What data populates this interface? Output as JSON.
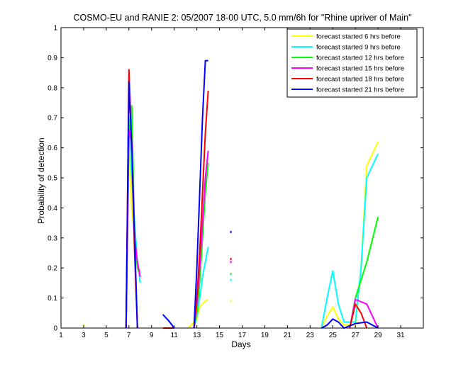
{
  "chart_data": {
    "type": "line",
    "title": "COSMO-EU and RANIE 2: 05/2007 18-00 UTC, 5.0 mm/6h for \"Rhine upriver of Main\"",
    "xlabel": "Days",
    "ylabel": "Probability of detection",
    "xlim": [
      1,
      33
    ],
    "ylim": [
      0,
      1
    ],
    "xticks": [
      1,
      3,
      5,
      7,
      9,
      11,
      13,
      15,
      17,
      19,
      21,
      23,
      25,
      27,
      29,
      31
    ],
    "yticks": [
      0,
      0.1,
      0.2,
      0.3,
      0.4,
      0.5,
      0.6,
      0.7,
      0.8,
      0.9,
      1
    ],
    "ytick_labels": [
      "0",
      "0.1",
      "0.2",
      "0.3",
      "0.4",
      "0.5",
      "0.6",
      "0.7",
      "0.8",
      "0.9",
      "1"
    ],
    "legend_position": "top-right",
    "grid": false,
    "series": [
      {
        "name": "forecast started 6 hrs before",
        "color": "#ffff00",
        "segments": [
          [
            [
              3,
              0.01
            ]
          ],
          [
            [
              6.75,
              0.0
            ],
            [
              7.0,
              0.58
            ],
            [
              7.25,
              0.4
            ],
            [
              7.5,
              0.3
            ],
            [
              7.75,
              0.2
            ],
            [
              8.0,
              0.17
            ]
          ],
          [
            [
              12.25,
              0.0
            ],
            [
              12.5,
              0.01
            ],
            [
              13.0,
              0.03
            ],
            [
              13.25,
              0.07
            ],
            [
              13.5,
              0.08
            ],
            [
              13.75,
              0.09
            ],
            [
              14.0,
              0.095
            ]
          ],
          [
            [
              16,
              0.09
            ]
          ],
          [
            [
              24.0,
              0.0
            ],
            [
              24.5,
              0.04
            ],
            [
              25.0,
              0.07
            ],
            [
              25.5,
              0.03
            ],
            [
              26.0,
              0.01
            ],
            [
              27.0,
              0.01
            ],
            [
              27.5,
              0.2
            ],
            [
              28.0,
              0.54
            ],
            [
              29.0,
              0.62
            ]
          ]
        ]
      },
      {
        "name": "forecast started 9 hrs before",
        "color": "#00ffff",
        "segments": [
          [
            [
              6.75,
              0.0
            ],
            [
              7.0,
              0.7
            ],
            [
              7.25,
              0.5
            ],
            [
              7.5,
              0.35
            ],
            [
              7.75,
              0.22
            ],
            [
              8.0,
              0.15
            ]
          ],
          [
            [
              12.75,
              0.0
            ],
            [
              13.0,
              0.04
            ],
            [
              13.25,
              0.1
            ],
            [
              13.5,
              0.17
            ],
            [
              13.75,
              0.22
            ],
            [
              14.0,
              0.27
            ]
          ],
          [
            [
              16,
              0.16
            ]
          ],
          [
            [
              24.0,
              0.0
            ],
            [
              24.5,
              0.1
            ],
            [
              25.0,
              0.19
            ],
            [
              25.5,
              0.08
            ],
            [
              26.0,
              0.02
            ],
            [
              27.0,
              0.02
            ],
            [
              27.5,
              0.2
            ],
            [
              28.0,
              0.5
            ],
            [
              29.0,
              0.58
            ]
          ]
        ]
      },
      {
        "name": "forecast started 12 hrs before",
        "color": "#00ff00",
        "segments": [
          [
            [
              6.75,
              0.0
            ],
            [
              7.0,
              0.64
            ],
            [
              7.25,
              0.74
            ],
            [
              7.5,
              0.3
            ],
            [
              7.75,
              0.2
            ],
            [
              8.0,
              0.18
            ]
          ],
          [
            [
              12.75,
              0.0
            ],
            [
              13.0,
              0.05
            ],
            [
              13.25,
              0.15
            ],
            [
              13.5,
              0.3
            ],
            [
              13.75,
              0.45
            ],
            [
              14.0,
              0.55
            ]
          ],
          [
            [
              16,
              0.18
            ]
          ],
          [
            [
              26.5,
              0.0
            ],
            [
              27.0,
              0.1
            ],
            [
              28.0,
              0.22
            ],
            [
              29.0,
              0.37
            ]
          ]
        ]
      },
      {
        "name": "forecast started 15 hrs before",
        "color": "#ff00ff",
        "segments": [
          [
            [
              6.75,
              0.0
            ],
            [
              7.0,
              0.66
            ],
            [
              7.25,
              0.62
            ],
            [
              7.5,
              0.3
            ],
            [
              7.75,
              0.22
            ],
            [
              8.0,
              0.17
            ]
          ],
          [
            [
              12.75,
              0.0
            ],
            [
              13.0,
              0.08
            ],
            [
              13.25,
              0.2
            ],
            [
              13.5,
              0.35
            ],
            [
              13.75,
              0.5
            ],
            [
              14.0,
              0.59
            ]
          ],
          [
            [
              16,
              0.22
            ]
          ],
          [
            [
              26.5,
              0.0
            ],
            [
              27.0,
              0.095
            ],
            [
              28.0,
              0.08
            ],
            [
              29.0,
              0.0
            ]
          ]
        ]
      },
      {
        "name": "forecast started 18 hrs before",
        "color": "#ff0000",
        "segments": [
          [
            [
              6.75,
              0.0
            ],
            [
              7.0,
              0.86
            ],
            [
              7.25,
              0.6
            ],
            [
              7.5,
              0.25
            ],
            [
              7.75,
              0.0
            ]
          ],
          [
            [
              10.0,
              0.0
            ],
            [
              11.0,
              0.0
            ]
          ],
          [
            [
              12.75,
              0.0
            ],
            [
              13.0,
              0.1
            ],
            [
              13.25,
              0.25
            ],
            [
              13.5,
              0.45
            ],
            [
              13.75,
              0.65
            ],
            [
              14.0,
              0.79
            ]
          ],
          [
            [
              16,
              0.23
            ]
          ],
          [
            [
              26.5,
              0.0
            ],
            [
              27.0,
              0.08
            ],
            [
              27.5,
              0.05
            ],
            [
              28.0,
              0.0
            ]
          ]
        ]
      },
      {
        "name": "forecast started 21 hrs before",
        "color": "#0000ff",
        "segments": [
          [
            [
              6.75,
              0.0
            ],
            [
              7.0,
              0.82
            ],
            [
              7.25,
              0.6
            ],
            [
              7.5,
              0.3
            ],
            [
              7.75,
              0.0
            ]
          ],
          [
            [
              10.0,
              0.045
            ],
            [
              10.5,
              0.025
            ],
            [
              11.0,
              0.0
            ]
          ],
          [
            [
              12.75,
              0.0
            ],
            [
              13.0,
              0.2
            ],
            [
              13.25,
              0.45
            ],
            [
              13.5,
              0.7
            ],
            [
              13.75,
              0.89
            ],
            [
              14.0,
              0.89
            ]
          ],
          [
            [
              16,
              0.32
            ]
          ],
          [
            [
              24.0,
              0.0
            ],
            [
              24.5,
              0.01
            ],
            [
              25.0,
              0.03
            ],
            [
              25.5,
              0.02
            ],
            [
              26.0,
              0.0
            ],
            [
              27.0,
              0.015
            ],
            [
              28.0,
              0.02
            ],
            [
              29.0,
              0.0
            ]
          ]
        ]
      }
    ]
  }
}
